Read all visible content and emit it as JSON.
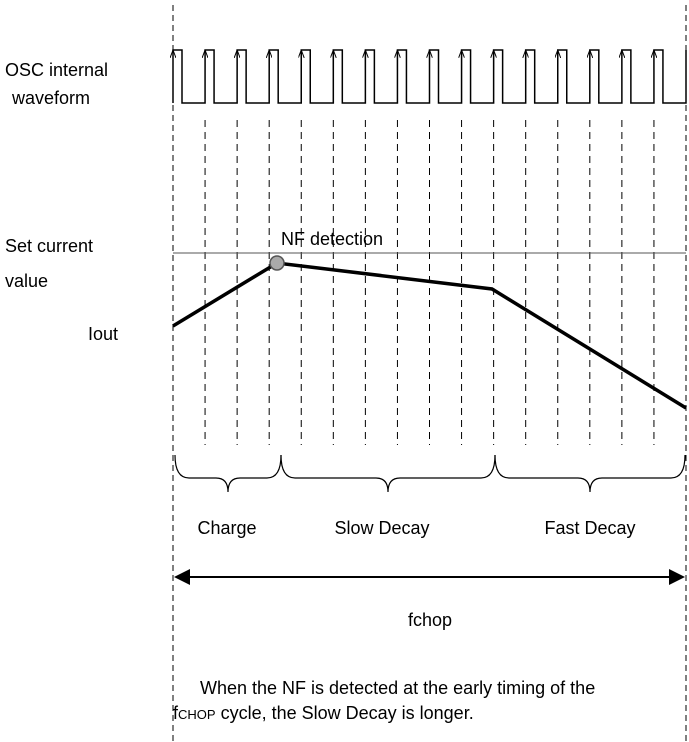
{
  "labels": {
    "osc_line1": "OSC internal",
    "osc_line2": "waveform",
    "set_line1": "Set current",
    "set_line2": "value",
    "iout": "Iout",
    "nf": "NF detection"
  },
  "phases": {
    "charge": "Charge",
    "slow": "Slow Decay",
    "fast": "Fast Decay"
  },
  "period": "fchop",
  "caption": {
    "line1": "When the NF is detected at the early timing of the",
    "line2_f": "f",
    "line2_sub": "CHOP",
    "line2_rest": " cycle, the Slow Decay is longer."
  }
}
